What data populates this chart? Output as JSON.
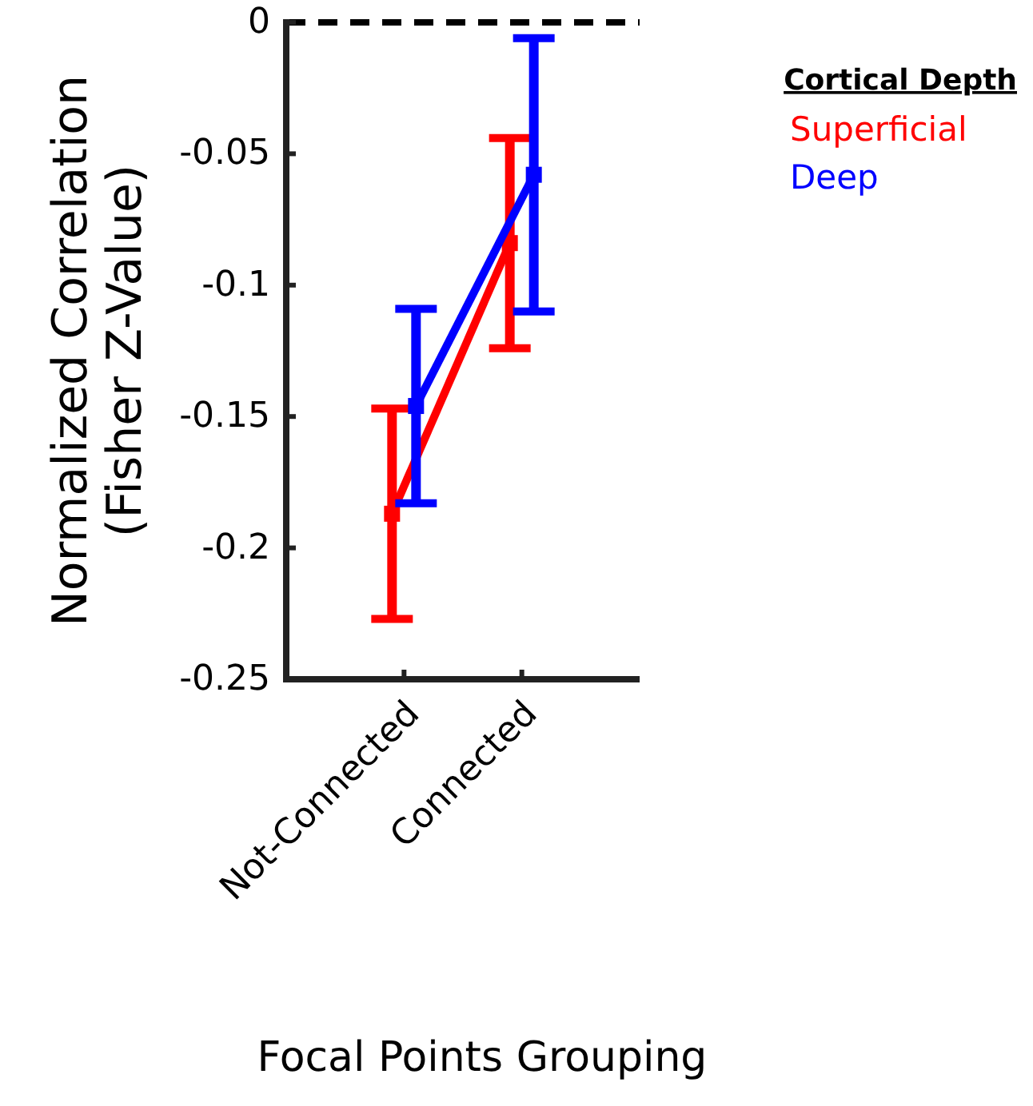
{
  "chart_data": {
    "type": "line",
    "xlabel": "Focal Points Grouping",
    "ylabel": "Normalized Correlation\n(Fisher Z-Value)",
    "legend_title": "Cortical Depth",
    "legend": "top right",
    "categories": [
      "Not-Connected",
      "Connected"
    ],
    "series": [
      {
        "name": "Superficial",
        "color": "#ff0000",
        "values": [
          -0.187,
          -0.084
        ],
        "errors": [
          0.04,
          0.04
        ]
      },
      {
        "name": "Deep",
        "color": "#0000ff",
        "values": [
          -0.146,
          -0.058
        ],
        "errors": [
          0.037,
          0.052
        ]
      }
    ],
    "ylim": [
      -0.25,
      0
    ],
    "yticks": [
      -0.25,
      -0.2,
      -0.15,
      -0.1,
      -0.05,
      0
    ],
    "marker": "square",
    "line_style": "solid",
    "grid": false,
    "ref_lines": [
      {
        "axis": "y",
        "value": 0,
        "color": "#000000",
        "line_style": "dashed"
      }
    ]
  }
}
